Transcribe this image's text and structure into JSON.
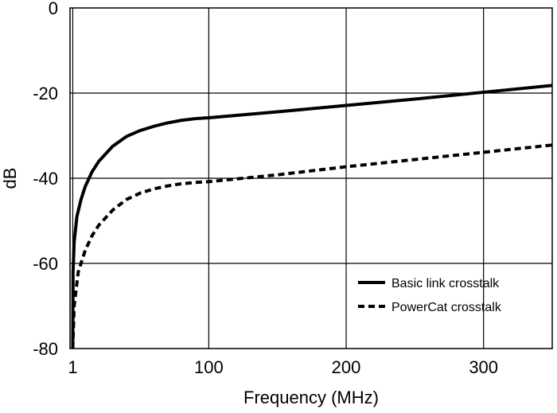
{
  "chart_data": {
    "type": "line",
    "title": "",
    "xlabel": "Frequency (MHz)",
    "ylabel": "dB",
    "xlim": [
      -1,
      350
    ],
    "ylim": [
      -80,
      0
    ],
    "x_ticks": [
      1,
      100,
      200,
      300
    ],
    "y_ticks": [
      0,
      -20,
      -40,
      -60,
      -80
    ],
    "x_tick_labels": [
      "1",
      "100",
      "200",
      "300"
    ],
    "y_tick_labels": [
      "0",
      "-20",
      "-40",
      "-60",
      "-80"
    ],
    "grid": true,
    "legend": {
      "position": "bottom-right"
    },
    "series": [
      {
        "name": "Basic link crosstalk",
        "style": "solid",
        "color": "#000000",
        "points": [
          [
            1,
            -80
          ],
          [
            1.2,
            -62
          ],
          [
            2,
            -55
          ],
          [
            4,
            -49
          ],
          [
            7,
            -45
          ],
          [
            10,
            -42
          ],
          [
            15,
            -38.5
          ],
          [
            20,
            -36
          ],
          [
            30,
            -32.5
          ],
          [
            40,
            -30.2
          ],
          [
            50,
            -28.8
          ],
          [
            60,
            -27.8
          ],
          [
            70,
            -27
          ],
          [
            80,
            -26.4
          ],
          [
            90,
            -26
          ],
          [
            100,
            -25.8
          ],
          [
            150,
            -24.4
          ],
          [
            200,
            -22.9
          ],
          [
            250,
            -21.4
          ],
          [
            300,
            -19.8
          ],
          [
            350,
            -18.2
          ]
        ]
      },
      {
        "name": "PowerCat crosstalk",
        "style": "dashed",
        "color": "#000000",
        "points": [
          [
            1,
            -80
          ],
          [
            2,
            -70
          ],
          [
            5,
            -62
          ],
          [
            10,
            -57
          ],
          [
            15,
            -53.5
          ],
          [
            20,
            -51
          ],
          [
            30,
            -47.5
          ],
          [
            40,
            -45
          ],
          [
            50,
            -43.5
          ],
          [
            60,
            -42.5
          ],
          [
            70,
            -41.8
          ],
          [
            80,
            -41.3
          ],
          [
            90,
            -41
          ],
          [
            100,
            -40.8
          ],
          [
            150,
            -39.2
          ],
          [
            200,
            -37.3
          ],
          [
            250,
            -35.6
          ],
          [
            300,
            -33.9
          ],
          [
            350,
            -32.2
          ]
        ]
      }
    ]
  }
}
